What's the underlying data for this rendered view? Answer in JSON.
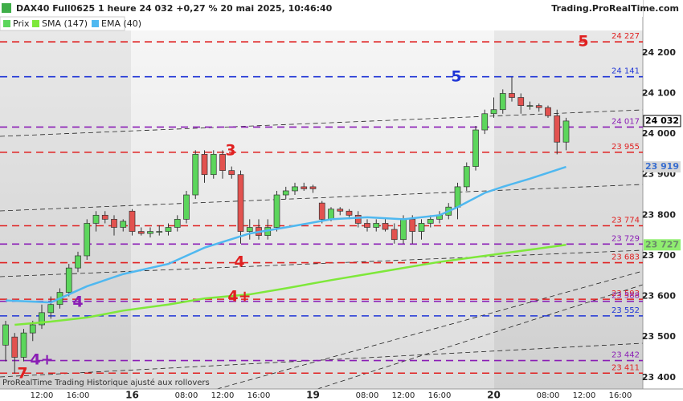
{
  "header": {
    "title": "DAX40 Full0625 1 heure 24 032 +0,27 % 20 mai 2025, 10:46:40",
    "site": "Trading.ProRealTime.com",
    "footer": "ProRealTime Trading  Historique ajusté aux rollovers"
  },
  "chart_data": {
    "type": "candlestick",
    "categories": [
      null,
      null,
      null,
      null,
      "12:00",
      null,
      null,
      null,
      "16:00",
      null,
      null,
      null,
      null,
      null,
      "16",
      null,
      null,
      null,
      null,
      null,
      "08:00",
      null,
      null,
      null,
      "12:00",
      null,
      null,
      null,
      "16:00",
      null,
      null,
      null,
      null,
      null,
      "19",
      null,
      null,
      null,
      null,
      null,
      "08:00",
      null,
      null,
      null,
      "12:00",
      null,
      null,
      null,
      "16:00",
      null,
      null,
      null,
      null,
      null,
      "20",
      null,
      null,
      null,
      null,
      null,
      "08:00",
      null,
      null,
      null,
      "12:00",
      null,
      null,
      null,
      "16:00",
      null,
      null
    ],
    "ylim": [
      23372,
      24255
    ],
    "yticks": [
      {
        "value": 23400,
        "label": "23 400"
      },
      {
        "value": 23500,
        "label": "23 500"
      },
      {
        "value": 23600,
        "label": "23 600"
      },
      {
        "value": 23700,
        "label": "23 700"
      },
      {
        "value": 23800,
        "label": "23 800"
      },
      {
        "value": 23900,
        "label": "23 900"
      },
      {
        "value": 24000,
        "label": "24 000"
      },
      {
        "value": 24100,
        "label": "24 100"
      },
      {
        "value": 24200,
        "label": "24 200"
      }
    ],
    "series": [
      {
        "name": "Prix",
        "up_color": "#5cd65c",
        "down_color": "#e2524f",
        "open": [
          23480,
          23500,
          23450,
          23510,
          23530,
          23560,
          23580,
          23610,
          23670,
          23700,
          23780,
          23800,
          23790,
          23770,
          23810,
          23760,
          23755,
          23760,
          23760,
          23770,
          23790,
          23850,
          23950,
          23900,
          23950,
          23910,
          23900,
          23760,
          23770,
          23750,
          23770,
          23850,
          23860,
          23870,
          23870,
          23830,
          23790,
          23815,
          23810,
          23800,
          23780,
          23770,
          23780,
          23765,
          23740,
          23790,
          23760,
          23780,
          23790,
          23800,
          23820,
          23870,
          23920,
          24010,
          24050,
          24060,
          24100,
          24090,
          24070,
          24070,
          24065,
          24045,
          23980
        ],
        "high": [
          23540,
          23510,
          23520,
          23540,
          23580,
          23600,
          23620,
          23680,
          23710,
          23790,
          23810,
          23810,
          23800,
          23790,
          23815,
          23770,
          23770,
          23775,
          23780,
          23800,
          23860,
          23960,
          23960,
          23960,
          23960,
          23920,
          23910,
          23790,
          23790,
          23790,
          23860,
          23870,
          23880,
          23880,
          23875,
          23835,
          23820,
          23820,
          23815,
          23810,
          23790,
          23790,
          23790,
          23780,
          23800,
          23800,
          23790,
          23800,
          23810,
          23830,
          23880,
          23930,
          24020,
          24060,
          24090,
          24110,
          24140,
          24100,
          24080,
          24075,
          24070,
          24060,
          24040
        ],
        "low": [
          23440,
          23410,
          23440,
          23490,
          23520,
          23545,
          23570,
          23600,
          23660,
          23690,
          23760,
          23780,
          23750,
          23760,
          23750,
          23750,
          23745,
          23750,
          23750,
          23760,
          23780,
          23840,
          23880,
          23890,
          23890,
          23890,
          23730,
          23740,
          23740,
          23740,
          23760,
          23840,
          23850,
          23860,
          23855,
          23780,
          23785,
          23800,
          23790,
          23770,
          23760,
          23760,
          23760,
          23730,
          23730,
          23730,
          23740,
          23770,
          23780,
          23790,
          23790,
          23860,
          23910,
          24000,
          24040,
          24050,
          24080,
          24050,
          24060,
          24055,
          24040,
          23950,
          23960
        ],
        "close": [
          23530,
          23450,
          23510,
          23530,
          23560,
          23580,
          23610,
          23670,
          23700,
          23780,
          23800,
          23790,
          23770,
          23785,
          23760,
          23755,
          23760,
          23760,
          23770,
          23790,
          23850,
          23950,
          23900,
          23950,
          23910,
          23900,
          23760,
          23770,
          23750,
          23770,
          23850,
          23860,
          23870,
          23865,
          23865,
          23790,
          23815,
          23810,
          23800,
          23780,
          23770,
          23780,
          23765,
          23740,
          23790,
          23760,
          23780,
          23790,
          23800,
          23820,
          23870,
          23920,
          24010,
          24050,
          24060,
          24100,
          24090,
          24070,
          24070,
          24065,
          24045,
          23980,
          24032
        ]
      },
      {
        "name": "SMA (147)",
        "color": "#7ee83a",
        "x": [
          1,
          5,
          9,
          13,
          18,
          22,
          27,
          31,
          36,
          40,
          44,
          48,
          53,
          58,
          62
        ],
        "values": [
          23530,
          23538,
          23548,
          23565,
          23580,
          23595,
          23605,
          23620,
          23640,
          23655,
          23670,
          23685,
          23700,
          23715,
          23727
        ]
      },
      {
        "name": "EMA (40)",
        "color": "#4fb8f0",
        "x": [
          0,
          5,
          9,
          13,
          18,
          22,
          27,
          31,
          36,
          40,
          44,
          48,
          50,
          53,
          55,
          58,
          62
        ],
        "values": [
          23590,
          23585,
          23625,
          23655,
          23680,
          23720,
          23755,
          23770,
          23790,
          23795,
          23790,
          23800,
          23820,
          23855,
          23870,
          23890,
          23919
        ]
      }
    ],
    "levels": [
      {
        "value": 24227,
        "label": "24 227",
        "color": "#e02020"
      },
      {
        "value": 24141,
        "label": "24 141",
        "color": "#1f35d6"
      },
      {
        "value": 24017,
        "label": "24 017",
        "color": "#8a1db5"
      },
      {
        "value": 23955,
        "label": "23 955",
        "color": "#e02020"
      },
      {
        "value": 23774,
        "label": "23 774",
        "color": "#e02020"
      },
      {
        "value": 23729,
        "label": "23 729",
        "color": "#8a1db5"
      },
      {
        "value": 23683,
        "label": "23 683",
        "color": "#e02020"
      },
      {
        "value": 23593,
        "label": "23 593",
        "color": "#e02020"
      },
      {
        "value": 23588,
        "label": "23 588",
        "color": "#8a1db5"
      },
      {
        "value": 23552,
        "label": "23 552",
        "color": "#1f35d6"
      },
      {
        "value": 23442,
        "label": "23 442",
        "color": "#8a1db5"
      },
      {
        "value": 23411,
        "label": "23 411",
        "color": "#e02020"
      }
    ],
    "badges": [
      {
        "value": 24032,
        "label": "24 032",
        "bg": "#ffffff",
        "fg": "#000000"
      },
      {
        "value": 23919,
        "label": "23 919",
        "bg": "#d8d8d8",
        "fg": "#3a6fd0"
      },
      {
        "value": 23727,
        "label": "23 727",
        "bg": "#90ee70",
        "fg": "#6a8a6a"
      }
    ],
    "annotations": [
      {
        "text": "5",
        "color": "#e02020"
      },
      {
        "text": "5",
        "color": "#1f35d6"
      },
      {
        "text": "3",
        "color": "#e02020"
      },
      {
        "text": "4",
        "color": "#e02020"
      },
      {
        "text": "4+",
        "color": "#e02020"
      },
      {
        "text": "4",
        "color": "#8a1db5"
      },
      {
        "text": "4+",
        "color": "#8a1db5"
      },
      {
        "text": "7",
        "color": "#e02020"
      }
    ]
  }
}
